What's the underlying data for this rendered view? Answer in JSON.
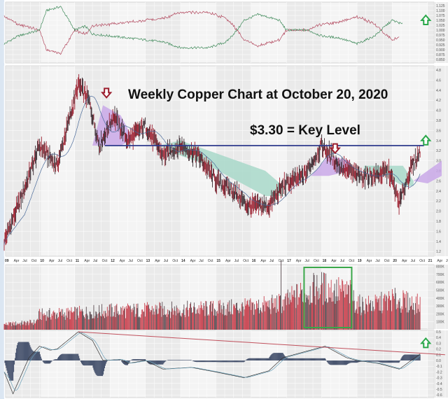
{
  "chart_data": [
    {
      "panel": "relative-ratio",
      "type": "line",
      "ylim": [
        0.85,
        1.125
      ],
      "y_ticks": [
        "1.125",
        "1.100",
        "1.075",
        "1.050",
        "1.025",
        "1.000",
        "0.975",
        "0.950",
        "0.925",
        "0.900",
        "0.875",
        "0.850"
      ],
      "series": [
        {
          "color": "#3f8a5a",
          "points": [
            [
              2009.0,
              0.93
            ],
            [
              2009.4,
              0.97
            ],
            [
              2010.0,
              1.0
            ],
            [
              2010.2,
              1.1
            ],
            [
              2010.6,
              1.12
            ],
            [
              2011.0,
              1.0
            ],
            [
              2011.3,
              1.02
            ],
            [
              2011.5,
              0.98
            ],
            [
              2012.0,
              0.97
            ],
            [
              2012.5,
              0.96
            ],
            [
              2013.0,
              0.95
            ],
            [
              2013.5,
              0.94
            ],
            [
              2014.0,
              0.91
            ],
            [
              2014.8,
              0.91
            ],
            [
              2015.3,
              0.94
            ],
            [
              2015.6,
              1.0
            ],
            [
              2015.8,
              1.05
            ],
            [
              2016.2,
              1.08
            ],
            [
              2016.8,
              1.05
            ],
            [
              2017.0,
              1.0
            ],
            [
              2017.6,
              1.0
            ],
            [
              2018.0,
              0.97
            ],
            [
              2018.5,
              0.96
            ],
            [
              2019.0,
              0.93
            ],
            [
              2019.5,
              0.97
            ],
            [
              2019.8,
              1.02
            ],
            [
              2020.0,
              1.05
            ],
            [
              2020.3,
              1.03
            ]
          ]
        },
        {
          "color": "#b2485e",
          "mirror_of": 0,
          "end": 2020.2
        }
      ]
    },
    {
      "panel": "price",
      "type": "line",
      "title": "Weekly Copper Chart at October 20, 2020",
      "annotation": "$3.30 = Key Level",
      "key_level": 3.3,
      "key_level_color": "#2e3a8c",
      "ylim": [
        1.2,
        4.8
      ],
      "y_ticks": [
        "4.8",
        "4.6",
        "4.4",
        "4.2",
        "4.0",
        "3.8",
        "3.6",
        "3.4",
        "3.2",
        "3.0",
        "2.8",
        "2.6",
        "2.4",
        "2.2",
        "2.0",
        "1.8",
        "1.6",
        "1.4",
        "1.2"
      ],
      "x_ticks": [
        "09",
        "Apr",
        "Jul",
        "Oct",
        "10",
        "Apr",
        "Jul",
        "Oct",
        "11",
        "Apr",
        "Jul",
        "Oct",
        "12",
        "Apr",
        "Jul",
        "Oct",
        "13",
        "Apr",
        "Jul",
        "Oct",
        "14",
        "Apr",
        "Jul",
        "Oct",
        "15",
        "Apr",
        "Jul",
        "Oct",
        "16",
        "Apr",
        "Jul",
        "Oct",
        "17",
        "Apr",
        "Jul",
        "Oct",
        "18",
        "Apr",
        "Jul",
        "Oct",
        "19",
        "Apr",
        "Jul",
        "Oct",
        "20",
        "Apr",
        "Jul",
        "Oct",
        "21",
        "Apr",
        "Jul"
      ],
      "x_range": [
        2009.0,
        2021.5
      ],
      "points": [
        [
          2009.0,
          1.4
        ],
        [
          2009.5,
          2.3
        ],
        [
          2010.0,
          3.3
        ],
        [
          2010.5,
          2.9
        ],
        [
          2011.1,
          4.5
        ],
        [
          2011.4,
          4.2
        ],
        [
          2011.7,
          3.3
        ],
        [
          2012.1,
          3.9
        ],
        [
          2012.5,
          3.4
        ],
        [
          2013.0,
          3.7
        ],
        [
          2013.5,
          3.1
        ],
        [
          2014.0,
          3.3
        ],
        [
          2014.5,
          3.1
        ],
        [
          2015.0,
          2.6
        ],
        [
          2015.5,
          2.4
        ],
        [
          2015.9,
          2.1
        ],
        [
          2016.5,
          2.1
        ],
        [
          2016.9,
          2.5
        ],
        [
          2017.5,
          2.7
        ],
        [
          2018.0,
          3.3
        ],
        [
          2018.5,
          2.9
        ],
        [
          2019.0,
          2.7
        ],
        [
          2019.5,
          2.7
        ],
        [
          2019.9,
          2.8
        ],
        [
          2020.2,
          2.15
        ],
        [
          2020.5,
          2.8
        ],
        [
          2020.8,
          3.2
        ]
      ],
      "cloud": [
        {
          "color": "#c9a8e8",
          "span": [
            [
              2011.5,
              3.3,
              3.3
            ],
            [
              2011.8,
              4.1,
              3.3
            ],
            [
              2012.3,
              3.9,
              3.3
            ],
            [
              2012.6,
              3.5,
              3.4
            ]
          ]
        },
        {
          "color": "#a8d8c9",
          "span": [
            [
              2013.4,
              3.3,
              3.3
            ],
            [
              2014.0,
              3.4,
              3.1
            ],
            [
              2014.8,
              3.2,
              2.9
            ],
            [
              2015.6,
              3.0,
              2.6
            ],
            [
              2016.4,
              2.8,
              2.3
            ],
            [
              2016.9,
              2.5,
              2.3
            ]
          ]
        },
        {
          "color": "#c9a8e8",
          "span": [
            [
              2017.7,
              2.7,
              2.7
            ],
            [
              2018.2,
              3.1,
              2.7
            ],
            [
              2018.8,
              3.0,
              2.8
            ]
          ]
        },
        {
          "color": "#a8d8c9",
          "span": [
            [
              2019.2,
              2.9,
              2.8
            ],
            [
              2019.8,
              2.9,
              2.7
            ],
            [
              2020.3,
              2.9,
              2.5
            ],
            [
              2020.6,
              2.6,
              2.5
            ]
          ]
        },
        {
          "color": "#c9a8e8",
          "span": [
            [
              2020.6,
              2.6,
              2.6
            ],
            [
              2021.0,
              2.8,
              2.55
            ],
            [
              2021.4,
              3.0,
              2.7
            ]
          ]
        }
      ],
      "markers": [
        {
          "type": "down-arrow",
          "color": "#9b1c2c",
          "x": 2011.9,
          "y": 4.35
        },
        {
          "type": "down-arrow",
          "color": "#9b1c2c",
          "x": 2018.38,
          "y": 3.25
        },
        {
          "type": "up-arrow",
          "color": "#2aa84a",
          "x": 2020.95,
          "y": 3.4
        }
      ]
    },
    {
      "panel": "volume",
      "type": "bar",
      "ylim": [
        0,
        900
      ],
      "y_ticks": [
        "800K",
        "700K",
        "600K",
        "500K",
        "400K",
        "300K",
        "200K",
        "100K"
      ],
      "levels_k": [
        [
          2009.0,
          70
        ],
        [
          2009.9,
          100
        ],
        [
          2010.0,
          200
        ],
        [
          2011.0,
          220
        ],
        [
          2012.0,
          250
        ],
        [
          2013.0,
          260
        ],
        [
          2014.0,
          270
        ],
        [
          2015.0,
          280
        ],
        [
          2016.0,
          300
        ],
        [
          2016.9,
          350
        ],
        [
          2017.5,
          500
        ],
        [
          2018.0,
          560
        ],
        [
          2018.8,
          480
        ],
        [
          2019.0,
          330
        ],
        [
          2019.5,
          330
        ],
        [
          2020.0,
          400
        ],
        [
          2020.8,
          330
        ]
      ],
      "spike": [
        2016.85,
        870
      ],
      "highlight": {
        "from": 2017.5,
        "to": 2018.85,
        "color": "#3aa84a"
      }
    },
    {
      "panel": "macd",
      "type": "line",
      "ylim": [
        -0.6,
        0.5
      ],
      "y_ticks": [
        "0.5",
        "0.4",
        "0.3",
        "0.2",
        "0.1",
        "0.0",
        "-0.1",
        "-0.2",
        "-0.3",
        "-0.4",
        "-0.5",
        "-0.6"
      ],
      "points": [
        [
          2009.0,
          -0.2
        ],
        [
          2009.25,
          -0.58
        ],
        [
          2009.7,
          0.05
        ],
        [
          2010.0,
          0.25
        ],
        [
          2010.3,
          0.18
        ],
        [
          2010.5,
          0.2
        ],
        [
          2011.1,
          0.5
        ],
        [
          2011.5,
          0.35
        ],
        [
          2011.8,
          0.0
        ],
        [
          2012.3,
          0.02
        ],
        [
          2012.5,
          -0.05
        ],
        [
          2013.0,
          0.0
        ],
        [
          2013.5,
          -0.15
        ],
        [
          2014.3,
          -0.12
        ],
        [
          2015.0,
          -0.2
        ],
        [
          2015.8,
          -0.3
        ],
        [
          2016.5,
          -0.18
        ],
        [
          2016.9,
          0.05
        ],
        [
          2017.5,
          0.15
        ],
        [
          2018.1,
          0.25
        ],
        [
          2018.7,
          0.05
        ],
        [
          2019.0,
          0.0
        ],
        [
          2019.6,
          -0.05
        ],
        [
          2020.2,
          -0.15
        ],
        [
          2020.8,
          0.12
        ]
      ],
      "trendline": {
        "color": "#c0505c",
        "from": [
          2011.1,
          0.5
        ],
        "to": [
          2021.5,
          0.1
        ]
      },
      "marker": {
        "type": "up-arrow",
        "color": "#2aa84a",
        "x": 2020.95,
        "y": 0.3
      }
    }
  ]
}
